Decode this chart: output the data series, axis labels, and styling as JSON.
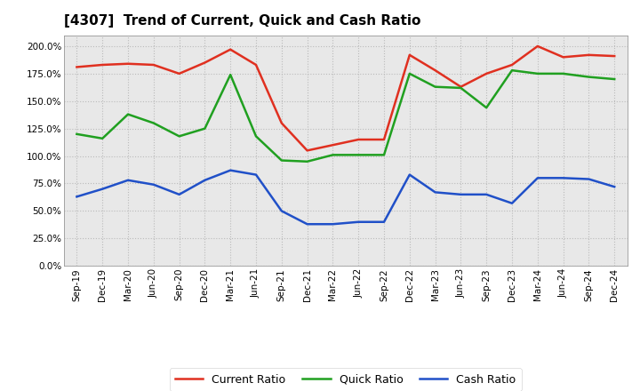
{
  "title": "[4307]  Trend of Current, Quick and Cash Ratio",
  "labels": [
    "Sep-19",
    "Dec-19",
    "Mar-20",
    "Jun-20",
    "Sep-20",
    "Dec-20",
    "Mar-21",
    "Jun-21",
    "Sep-21",
    "Dec-21",
    "Mar-22",
    "Jun-22",
    "Sep-22",
    "Dec-22",
    "Mar-23",
    "Jun-23",
    "Sep-23",
    "Dec-23",
    "Mar-24",
    "Jun-24",
    "Sep-24",
    "Dec-24"
  ],
  "current_ratio": [
    181,
    183,
    184,
    183,
    175,
    185,
    197,
    183,
    130,
    105,
    110,
    115,
    115,
    192,
    178,
    163,
    175,
    183,
    200,
    190,
    192,
    191
  ],
  "quick_ratio": [
    120,
    116,
    138,
    130,
    118,
    125,
    174,
    118,
    96,
    95,
    101,
    101,
    101,
    175,
    163,
    162,
    144,
    178,
    175,
    175,
    172,
    170
  ],
  "cash_ratio": [
    63,
    70,
    78,
    74,
    65,
    78,
    87,
    83,
    50,
    38,
    38,
    40,
    40,
    83,
    67,
    65,
    65,
    57,
    80,
    80,
    79,
    72
  ],
  "current_color": "#e03020",
  "quick_color": "#20a020",
  "cash_color": "#2050c8",
  "bg_color": "#ffffff",
  "plot_bg_color": "#e8e8e8",
  "ylim": [
    0,
    210
  ],
  "yticks": [
    0,
    25,
    50,
    75,
    100,
    125,
    150,
    175,
    200
  ],
  "grid_color": "#bbbbbb",
  "legend_labels": [
    "Current Ratio",
    "Quick Ratio",
    "Cash Ratio"
  ]
}
